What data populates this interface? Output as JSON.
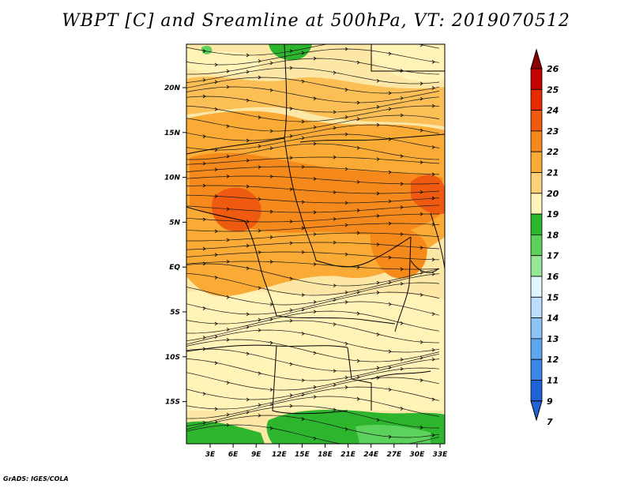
{
  "title": "WBPT [C] and Sreamline at 500hPa, VT: 2019070512",
  "credit": "GrADS: IGES/COLA",
  "map": {
    "x_ticks": [
      "3E",
      "6E",
      "9E",
      "12E",
      "15E",
      "18E",
      "21E",
      "24E",
      "27E",
      "30E",
      "33E"
    ],
    "y_ticks": [
      "20N",
      "15N",
      "10N",
      "5N",
      "EQ",
      "5S",
      "10S",
      "15S"
    ]
  },
  "colorbar": {
    "labels": [
      "26",
      "25",
      "24",
      "23",
      "22",
      "21",
      "20",
      "19",
      "18",
      "17",
      "16",
      "15",
      "14",
      "13",
      "12",
      "11",
      "9",
      "7"
    ],
    "colors": [
      "#8e0000",
      "#c40000",
      "#e62b00",
      "#ee5a10",
      "#f5891c",
      "#f9ab36",
      "#fdd178",
      "#fff3b8",
      "#2db52d",
      "#5cd15c",
      "#98e698",
      "#dff6ff",
      "#bcdfff",
      "#8cc4f8",
      "#5da7f0",
      "#3a86e6",
      "#1e64d4"
    ]
  }
}
